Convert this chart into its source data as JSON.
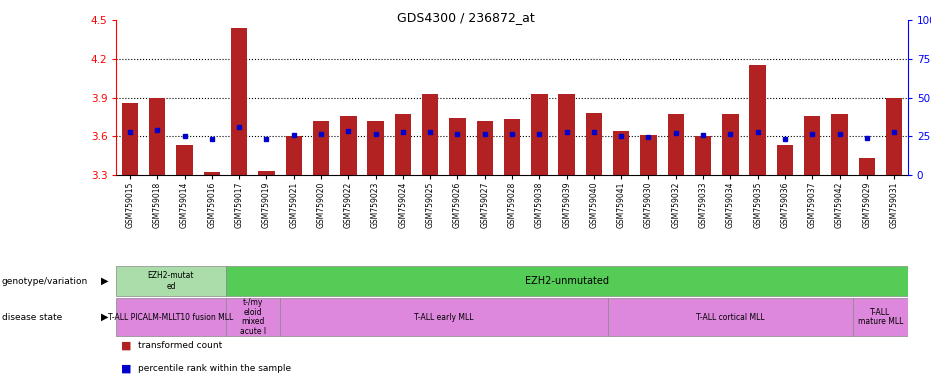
{
  "title": "GDS4300 / 236872_at",
  "samples": [
    "GSM759015",
    "GSM759018",
    "GSM759014",
    "GSM759016",
    "GSM759017",
    "GSM759019",
    "GSM759021",
    "GSM759020",
    "GSM759022",
    "GSM759023",
    "GSM759024",
    "GSM759025",
    "GSM759026",
    "GSM759027",
    "GSM759028",
    "GSM759038",
    "GSM759039",
    "GSM759040",
    "GSM759041",
    "GSM759030",
    "GSM759032",
    "GSM759033",
    "GSM759034",
    "GSM759035",
    "GSM759036",
    "GSM759037",
    "GSM759042",
    "GSM759029",
    "GSM759031"
  ],
  "bar_values": [
    3.86,
    3.9,
    3.53,
    3.32,
    4.44,
    3.33,
    3.6,
    3.72,
    3.76,
    3.72,
    3.77,
    3.93,
    3.74,
    3.72,
    3.73,
    3.93,
    3.93,
    3.78,
    3.64,
    3.61,
    3.77,
    3.6,
    3.77,
    4.15,
    3.53,
    3.76,
    3.77,
    3.43,
    3.9
  ],
  "percentile_values": [
    3.635,
    3.645,
    3.6,
    3.58,
    3.675,
    3.578,
    3.61,
    3.618,
    3.638,
    3.618,
    3.63,
    3.63,
    3.62,
    3.62,
    3.62,
    3.62,
    3.63,
    3.63,
    3.6,
    3.598,
    3.628,
    3.608,
    3.62,
    3.632,
    3.578,
    3.62,
    3.62,
    3.59,
    3.63
  ],
  "ymin": 3.3,
  "ymax": 4.5,
  "yticks": [
    3.3,
    3.6,
    3.9,
    4.2,
    4.5
  ],
  "grid_lines": [
    3.6,
    3.9,
    4.2
  ],
  "bar_color": "#b22222",
  "percentile_color": "#0000cc",
  "background_color": "#ffffff",
  "right_ytick_positions": [
    0,
    25,
    50,
    75,
    100
  ],
  "right_ytick_labels": [
    "0",
    "25",
    "50",
    "75",
    "100%"
  ],
  "geno_mutated_color": "#aaddaa",
  "geno_unmutated_color": "#66cc66",
  "disease_color": "#dd88dd"
}
